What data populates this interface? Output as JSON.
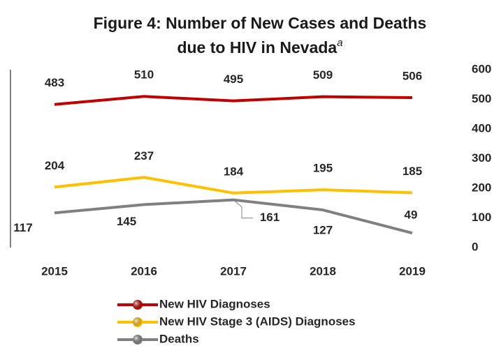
{
  "chart_data": {
    "type": "line",
    "title": "Figure 4: Number of New Cases and Deaths",
    "title_line2": "due to HIV in Nevada",
    "title_superscript": "a",
    "categories": [
      "2015",
      "2016",
      "2017",
      "2018",
      "2019"
    ],
    "series": [
      {
        "name": "New HIV Diagnoses",
        "color": "#c00000",
        "values": [
          483,
          510,
          495,
          509,
          506
        ]
      },
      {
        "name": "New HIV Stage 3 (AIDS) Diagnoses",
        "color": "#ffc000",
        "values": [
          204,
          237,
          184,
          195,
          185
        ]
      },
      {
        "name": "Deaths",
        "color": "#808080",
        "values": [
          117,
          145,
          161,
          127,
          49
        ]
      }
    ],
    "ylim": [
      0,
      600
    ],
    "yticks": [
      0,
      100,
      200,
      300,
      400,
      500,
      600
    ],
    "legend": "bottom"
  }
}
